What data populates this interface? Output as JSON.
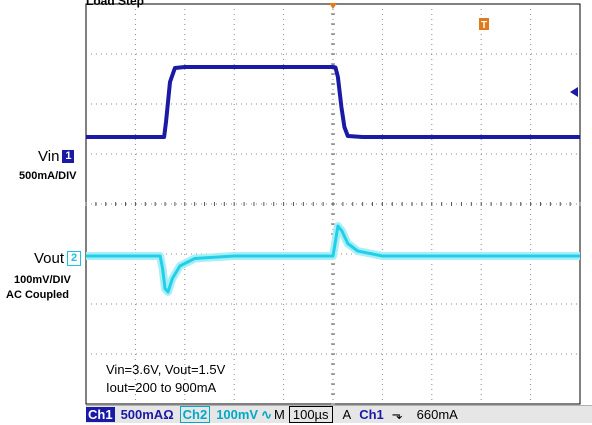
{
  "title": "Load Step",
  "channels": {
    "ch1": {
      "name": "Vin",
      "marker": "1",
      "scale": "500mA/DIV",
      "color": "#1a1aa6"
    },
    "ch2": {
      "name": "Vout",
      "marker": "2",
      "scale": "100mV/DIV",
      "coupling": "AC Coupled",
      "color": "#20d8e8"
    }
  },
  "trigger_marker": "T",
  "notes": [
    "Vin=3.6V, Vout=1.5V",
    "Iout=200 to 900mA"
  ],
  "status": {
    "ch1_label": "Ch1",
    "ch1_scale": "500mAΩ",
    "ch2_label": "Ch2",
    "ch2_scale": "100mV",
    "ch2_bw_symbol": "∿",
    "time_prefix": "M",
    "timebase": "100µs",
    "trig_mode": "A",
    "trig_source": "Ch1",
    "trig_slope": "⬎",
    "trig_level": "660mA"
  },
  "chart_data": {
    "type": "line",
    "grid": true,
    "x_divisions": 10,
    "y_divisions": 8,
    "x_unit": "µs per division",
    "x_per_div": 100,
    "series": [
      {
        "name": "Vin",
        "y_unit": "mA",
        "y_per_div": 500,
        "x": [
          0,
          150,
          158,
          162,
          170,
          180,
          200,
          400,
          500,
          505,
          510,
          517,
          523,
          530,
          560,
          1000
        ],
        "y": [
          200,
          200,
          200,
          350,
          750,
          890,
          900,
          900,
          900,
          895,
          800,
          500,
          300,
          210,
          200,
          200
        ]
      },
      {
        "name": "Vout",
        "y_unit": "mV",
        "y_per_div": 100,
        "x": [
          0,
          150,
          155,
          160,
          166,
          175,
          190,
          220,
          300,
          500,
          505,
          510,
          518,
          530,
          550,
          600,
          1000
        ],
        "y": [
          0,
          0,
          -25,
          -65,
          -72,
          -45,
          -20,
          -5,
          0,
          0,
          30,
          60,
          50,
          25,
          10,
          0,
          0
        ]
      }
    ]
  }
}
